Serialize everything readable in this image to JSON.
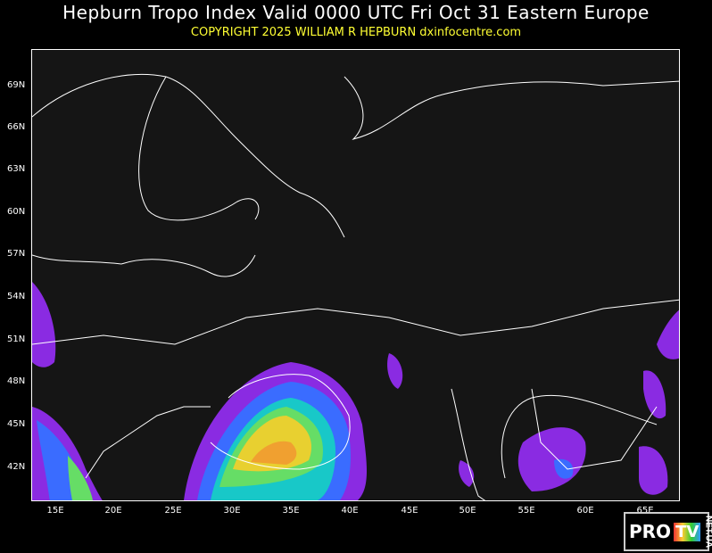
{
  "header": {
    "title": "Hepburn Tropo Index Valid 0000 UTC Fri Oct 31 Eastern Europe",
    "copyright": "COPYRIGHT 2025   WILLIAM R HEPBURN   dxinfocentre.com"
  },
  "map": {
    "region": "Eastern Europe",
    "lat_labels": [
      "69N",
      "66N",
      "63N",
      "60N",
      "57N",
      "54N",
      "51N",
      "48N",
      "45N",
      "42N"
    ],
    "lon_labels": [
      "15E",
      "20E",
      "25E",
      "30E",
      "35E",
      "40E",
      "45E",
      "50E",
      "55E",
      "60E",
      "65E"
    ],
    "colors": {
      "low": "#8a2be2",
      "blue": "#3a6cff",
      "cyan": "#18c8c8",
      "green": "#66dd66",
      "yellow": "#e8d030",
      "orange": "#f0a030"
    }
  },
  "logo": {
    "text_pro": "PRO",
    "text_tv": "TV",
    "text_net": "NET.UA"
  }
}
